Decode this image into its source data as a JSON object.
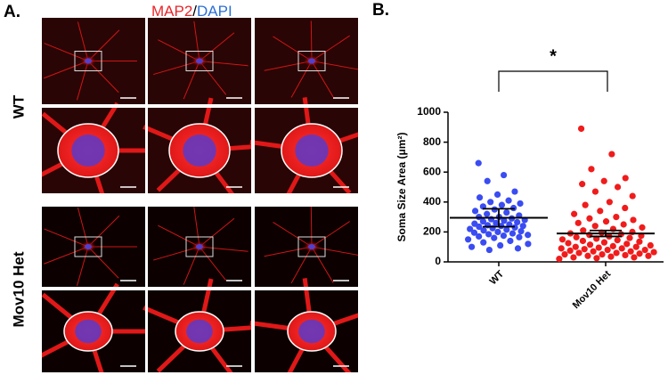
{
  "panel_a": {
    "label": "A.",
    "title_parts": [
      "MAP2",
      "/",
      "DAPI"
    ],
    "rows": [
      "WT",
      "Mov10 Het"
    ]
  },
  "chart_data": {
    "type": "scatter",
    "panel_label": "B.",
    "y_label": "Soma Size Area (μm²)",
    "annotation": "*",
    "categories": [
      "WT",
      "Mov10 Het"
    ],
    "ylim": [
      0,
      1000
    ],
    "yticks": [
      0,
      200,
      400,
      600,
      800,
      1000
    ],
    "series": [
      {
        "name": "WT",
        "color": "#3a4cf2",
        "mean": 295,
        "error": 60,
        "values": [
          660,
          580,
          540,
          470,
          450,
          430,
          410,
          400,
          390,
          380,
          370,
          360,
          350,
          340,
          330,
          320,
          310,
          300,
          300,
          290,
          285,
          280,
          275,
          270,
          265,
          260,
          255,
          250,
          245,
          240,
          240,
          235,
          230,
          225,
          220,
          215,
          210,
          205,
          200,
          195,
          190,
          185,
          180,
          175,
          170,
          165,
          160,
          150,
          140,
          130,
          120,
          110,
          100,
          90,
          80
        ]
      },
      {
        "name": "Mov10 Het",
        "color": "#f01c1c",
        "mean": 190,
        "error": 20,
        "values": [
          890,
          720,
          620,
          560,
          540,
          520,
          500,
          470,
          440,
          400,
          380,
          360,
          340,
          320,
          300,
          290,
          280,
          270,
          260,
          250,
          240,
          230,
          220,
          210,
          200,
          195,
          190,
          185,
          180,
          175,
          170,
          165,
          160,
          155,
          150,
          145,
          140,
          135,
          130,
          125,
          120,
          115,
          110,
          105,
          100,
          100,
          95,
          90,
          90,
          85,
          80,
          80,
          75,
          70,
          70,
          65,
          60,
          60,
          55,
          50,
          50,
          45,
          40,
          40,
          35,
          30,
          30,
          25,
          20
        ]
      }
    ]
  }
}
